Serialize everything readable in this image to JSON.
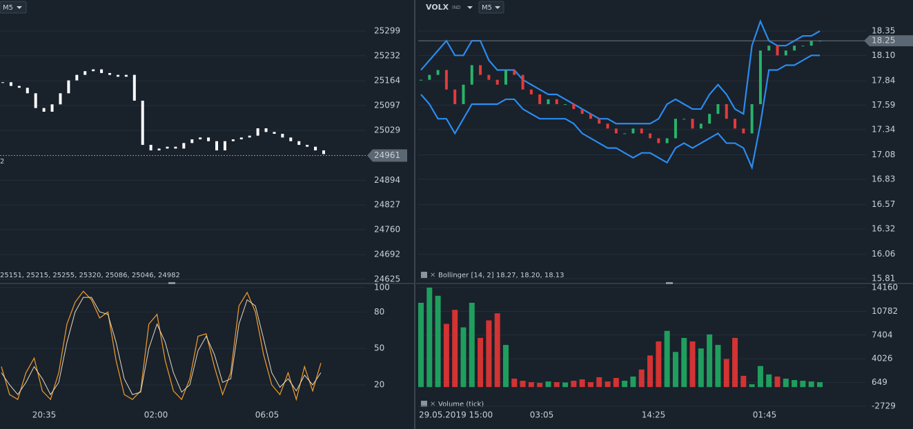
{
  "left_panel": {
    "timeframe": "M5",
    "cut_label": "2",
    "price_axis": [
      25299,
      25232,
      25164,
      25097,
      25029,
      24894,
      24827,
      24760,
      24692,
      24625
    ],
    "price_label": 24961,
    "indicator_text": "25151, 25215, 25255, 25320, 25086, 25046, 24982",
    "osc_axis": [
      100,
      80,
      50,
      20
    ],
    "time_axis": [
      "20:35",
      "02:00",
      "06:05"
    ],
    "close": [
      25160,
      25150,
      25145,
      25130,
      25090,
      25080,
      25100,
      25130,
      25165,
      25180,
      25190,
      25195,
      25185,
      25180,
      25175,
      25180,
      25110,
      24990,
      24975,
      24980,
      24985,
      24980,
      24995,
      25005,
      25010,
      25000,
      24975,
      25000,
      25005,
      25010,
      25015,
      25035,
      25025,
      25020,
      25010,
      25000,
      24990,
      24985,
      24975,
      24965
    ],
    "osc_k": [
      35,
      12,
      8,
      30,
      42,
      15,
      8,
      30,
      70,
      88,
      97,
      90,
      75,
      80,
      40,
      12,
      8,
      15,
      70,
      78,
      40,
      15,
      8,
      25,
      60,
      62,
      35,
      12,
      30,
      85,
      96,
      80,
      45,
      20,
      12,
      30,
      8,
      35,
      15,
      38
    ],
    "osc_d": [
      30,
      20,
      12,
      22,
      35,
      25,
      12,
      22,
      55,
      80,
      92,
      92,
      80,
      78,
      55,
      25,
      12,
      14,
      50,
      70,
      55,
      30,
      14,
      20,
      48,
      60,
      45,
      22,
      25,
      70,
      90,
      85,
      58,
      30,
      18,
      25,
      15,
      28,
      20,
      30
    ]
  },
  "right_panel": {
    "symbol": "VOLX",
    "badge": "IND",
    "timeframe": "M5",
    "price_axis": [
      18.35,
      {
        "value": 18.1,
        "label": "18.10"
      },
      17.84,
      17.59,
      17.34,
      17.08,
      16.83,
      16.57,
      16.32,
      16.06,
      15.81
    ],
    "price_label": 18.25,
    "bollinger_label": "Bollinger [14, 2] 18.27, 18.20, 18.13",
    "volume_label": "Volume (tick)",
    "volume_axis": [
      14160,
      10782,
      7404,
      4026,
      649,
      -2729
    ],
    "time_axis": [
      "29.05.2019 15:00",
      "03:05",
      "14:25",
      "01:45"
    ],
    "close": [
      17.85,
      17.9,
      17.95,
      17.75,
      17.6,
      17.8,
      18.0,
      17.9,
      17.85,
      17.8,
      17.95,
      17.9,
      17.75,
      17.7,
      17.6,
      17.65,
      17.6,
      17.6,
      17.55,
      17.5,
      17.45,
      17.4,
      17.35,
      17.3,
      17.3,
      17.35,
      17.3,
      17.25,
      17.2,
      17.25,
      17.45,
      17.45,
      17.35,
      17.4,
      17.5,
      17.6,
      17.45,
      17.35,
      17.3,
      17.6,
      18.15,
      18.2,
      18.1,
      18.15,
      18.2,
      18.2,
      18.25,
      18.25
    ],
    "upper": [
      17.95,
      18.05,
      18.15,
      18.25,
      18.1,
      18.1,
      18.25,
      18.25,
      18.05,
      17.95,
      17.95,
      17.95,
      17.85,
      17.8,
      17.75,
      17.7,
      17.7,
      17.65,
      17.6,
      17.55,
      17.5,
      17.45,
      17.45,
      17.4,
      17.4,
      17.4,
      17.4,
      17.4,
      17.45,
      17.6,
      17.65,
      17.6,
      17.55,
      17.55,
      17.7,
      17.8,
      17.7,
      17.55,
      17.5,
      18.2,
      18.45,
      18.25,
      18.2,
      18.2,
      18.25,
      18.3,
      18.3,
      18.35
    ],
    "lower": [
      17.7,
      17.6,
      17.45,
      17.45,
      17.3,
      17.45,
      17.6,
      17.6,
      17.6,
      17.6,
      17.65,
      17.65,
      17.55,
      17.5,
      17.45,
      17.45,
      17.45,
      17.45,
      17.4,
      17.3,
      17.25,
      17.2,
      17.15,
      17.15,
      17.1,
      17.05,
      17.1,
      17.1,
      17.05,
      17.0,
      17.15,
      17.2,
      17.15,
      17.2,
      17.25,
      17.3,
      17.2,
      17.2,
      17.15,
      16.95,
      17.4,
      17.95,
      17.95,
      18.0,
      18.0,
      18.05,
      18.1,
      18.1
    ],
    "volume": [
      12000,
      14160,
      13000,
      9000,
      11000,
      8500,
      12000,
      7000,
      9500,
      10500,
      6000,
      1200,
      900,
      700,
      600,
      800,
      700,
      650,
      900,
      1100,
      700,
      1400,
      800,
      1300,
      900,
      1500,
      2500,
      4500,
      6500,
      8000,
      5000,
      7000,
      6500,
      5500,
      7500,
      6000,
      4000,
      7000,
      1600,
      400,
      3000,
      1800,
      1500,
      1200,
      1000,
      900,
      800,
      700
    ]
  }
}
